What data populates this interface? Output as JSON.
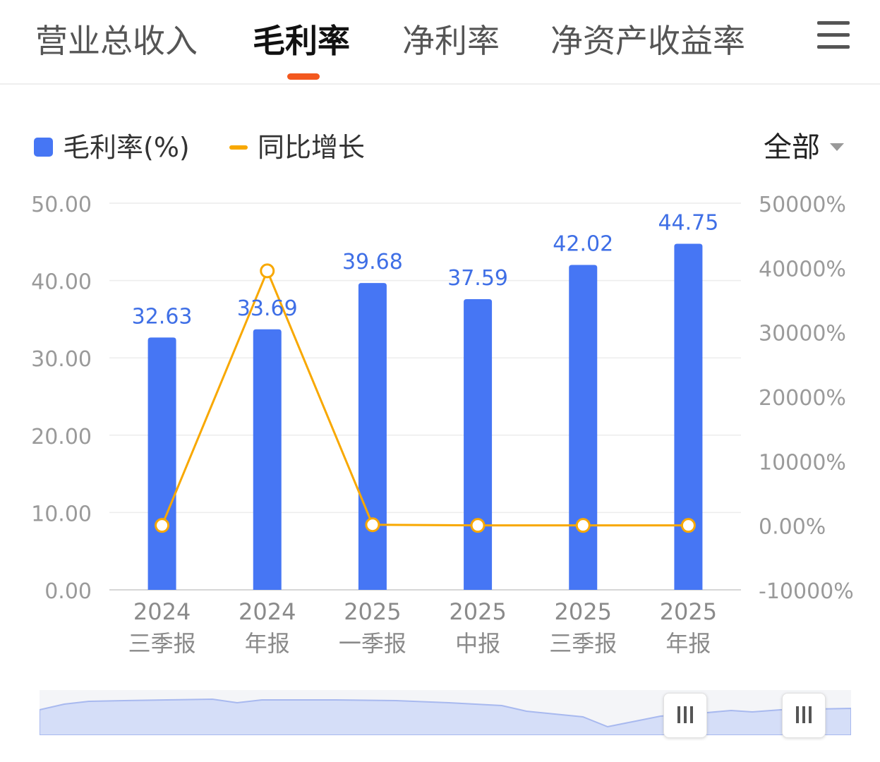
{
  "tabs": [
    {
      "label": "营业总收入",
      "active": false
    },
    {
      "label": "毛利率",
      "active": true
    },
    {
      "label": "净利率",
      "active": false
    },
    {
      "label": "净资产收益率",
      "active": false
    }
  ],
  "menu_icon": "hamburger-menu-icon",
  "legend": {
    "bar_label": "毛利率(%)",
    "line_label": "同比增长"
  },
  "range_select": {
    "value": "全部"
  },
  "colors": {
    "bar": "#4676f4",
    "line": "#f8a800",
    "accent": "#f3581e",
    "label": "#3f6fe6"
  },
  "chart_data": {
    "type": "bar",
    "categories": [
      "2024\n三季报",
      "2024\n年报",
      "2025\n一季报",
      "2025\n中报",
      "2025\n三季报",
      "2025\n年报"
    ],
    "series": [
      {
        "name": "毛利率(%)",
        "type": "bar",
        "axis": "left",
        "values": [
          32.63,
          33.69,
          39.68,
          37.59,
          42.02,
          44.75
        ],
        "labels": [
          "32.63",
          "33.69",
          "39.68",
          "37.59",
          "42.02",
          "44.75"
        ]
      },
      {
        "name": "同比增长",
        "type": "line",
        "axis": "right",
        "values": [
          0,
          39500,
          100,
          0,
          0,
          0
        ]
      }
    ],
    "y_left": {
      "ylim": [
        0,
        50
      ],
      "ticks": [
        "0.00",
        "10.00",
        "20.00",
        "30.00",
        "40.00",
        "50.00"
      ]
    },
    "y_right": {
      "ylim": [
        -10000,
        50000
      ],
      "ticks": [
        "-10000%",
        "0.00%",
        "10000%",
        "20000%",
        "30000%",
        "40000%",
        "50000%"
      ]
    },
    "grid": true,
    "legend_position": "top-left"
  },
  "slider": {
    "range": [
      0.78,
      0.92
    ]
  }
}
